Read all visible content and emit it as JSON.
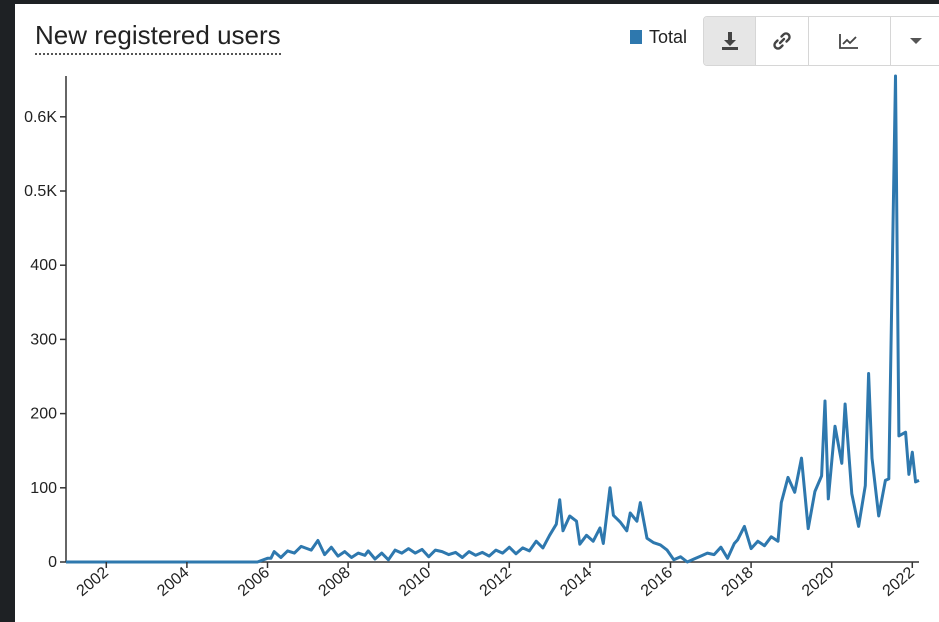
{
  "chart_data": {
    "type": "line",
    "title": "New registered users",
    "legend": {
      "entries": [
        "Total"
      ],
      "position": "top-right"
    },
    "xlabel": "",
    "ylabel": "",
    "x_ticks": [
      "2002",
      "2004",
      "2006",
      "2008",
      "2010",
      "2012",
      "2014",
      "2016",
      "2018",
      "2020",
      "2022"
    ],
    "y_ticks": [
      {
        "value": 0,
        "label": "0"
      },
      {
        "value": 100,
        "label": "100"
      },
      {
        "value": 200,
        "label": "200"
      },
      {
        "value": 300,
        "label": "300"
      },
      {
        "value": 400,
        "label": "400"
      },
      {
        "value": 500,
        "label": "0.5K"
      },
      {
        "value": 600,
        "label": "0.6K"
      }
    ],
    "xlim": [
      "2001-01",
      "2022-03"
    ],
    "ylim": [
      0,
      655
    ],
    "grid": false,
    "series": [
      {
        "name": "Total",
        "color": "#2e78ae",
        "points": [
          [
            "2001-01",
            0
          ],
          [
            "2005-10",
            0
          ],
          [
            "2006-01",
            5
          ],
          [
            "2006-02",
            5
          ],
          [
            "2006-03",
            14
          ],
          [
            "2006-05",
            6
          ],
          [
            "2006-07",
            15
          ],
          [
            "2006-09",
            12
          ],
          [
            "2006-11",
            21
          ],
          [
            "2007-02",
            16
          ],
          [
            "2007-04",
            29
          ],
          [
            "2007-06",
            10
          ],
          [
            "2007-08",
            20
          ],
          [
            "2007-10",
            8
          ],
          [
            "2007-12",
            14
          ],
          [
            "2008-02",
            6
          ],
          [
            "2008-04",
            12
          ],
          [
            "2008-06",
            9
          ],
          [
            "2008-07",
            15
          ],
          [
            "2008-09",
            4
          ],
          [
            "2008-11",
            12
          ],
          [
            "2009-01",
            3
          ],
          [
            "2009-03",
            16
          ],
          [
            "2009-05",
            12
          ],
          [
            "2009-07",
            18
          ],
          [
            "2009-09",
            12
          ],
          [
            "2009-11",
            17
          ],
          [
            "2010-01",
            7
          ],
          [
            "2010-03",
            16
          ],
          [
            "2010-05",
            14
          ],
          [
            "2010-07",
            10
          ],
          [
            "2010-09",
            13
          ],
          [
            "2010-11",
            6
          ],
          [
            "2011-01",
            14
          ],
          [
            "2011-03",
            9
          ],
          [
            "2011-05",
            13
          ],
          [
            "2011-07",
            8
          ],
          [
            "2011-09",
            16
          ],
          [
            "2011-11",
            12
          ],
          [
            "2012-01",
            20
          ],
          [
            "2012-03",
            11
          ],
          [
            "2012-05",
            19
          ],
          [
            "2012-07",
            15
          ],
          [
            "2012-09",
            28
          ],
          [
            "2012-11",
            19
          ],
          [
            "2013-01",
            36
          ],
          [
            "2013-03",
            51
          ],
          [
            "2013-04",
            84
          ],
          [
            "2013-05",
            42
          ],
          [
            "2013-07",
            62
          ],
          [
            "2013-09",
            55
          ],
          [
            "2013-10",
            24
          ],
          [
            "2013-12",
            36
          ],
          [
            "2014-02",
            28
          ],
          [
            "2014-04",
            46
          ],
          [
            "2014-05",
            25
          ],
          [
            "2014-07",
            100
          ],
          [
            "2014-08",
            63
          ],
          [
            "2014-10",
            54
          ],
          [
            "2014-12",
            42
          ],
          [
            "2015-01",
            66
          ],
          [
            "2015-03",
            55
          ],
          [
            "2015-04",
            80
          ],
          [
            "2015-06",
            32
          ],
          [
            "2015-08",
            26
          ],
          [
            "2015-10",
            23
          ],
          [
            "2015-12",
            16
          ],
          [
            "2016-02",
            3
          ],
          [
            "2016-04",
            7
          ],
          [
            "2016-06",
            0
          ],
          [
            "2016-08",
            4
          ],
          [
            "2016-10",
            8
          ],
          [
            "2016-12",
            12
          ],
          [
            "2017-02",
            10
          ],
          [
            "2017-04",
            20
          ],
          [
            "2017-06",
            5
          ],
          [
            "2017-08",
            25
          ],
          [
            "2017-09",
            30
          ],
          [
            "2017-11",
            48
          ],
          [
            "2018-01",
            18
          ],
          [
            "2018-03",
            28
          ],
          [
            "2018-05",
            22
          ],
          [
            "2018-07",
            34
          ],
          [
            "2018-09",
            28
          ],
          [
            "2018-10",
            80
          ],
          [
            "2018-12",
            114
          ],
          [
            "2019-02",
            94
          ],
          [
            "2019-04",
            140
          ],
          [
            "2019-06",
            45
          ],
          [
            "2019-08",
            95
          ],
          [
            "2019-10",
            116
          ],
          [
            "2019-11",
            217
          ],
          [
            "2019-12",
            85
          ],
          [
            "2020-02",
            183
          ],
          [
            "2020-04",
            133
          ],
          [
            "2020-05",
            213
          ],
          [
            "2020-07",
            92
          ],
          [
            "2020-09",
            48
          ],
          [
            "2020-11",
            103
          ],
          [
            "2020-12",
            254
          ],
          [
            "2021-01",
            140
          ],
          [
            "2021-03",
            62
          ],
          [
            "2021-05",
            110
          ],
          [
            "2021-06",
            112
          ],
          [
            "2021-08",
            655
          ],
          [
            "2021-09",
            170
          ],
          [
            "2021-11",
            175
          ],
          [
            "2021-12",
            118
          ],
          [
            "2022-01",
            148
          ],
          [
            "2022-02",
            108
          ],
          [
            "2022-03",
            110
          ]
        ]
      }
    ]
  },
  "legend_color": "#2e78ae",
  "toolbar": {
    "buttons": [
      {
        "icon": "download-icon"
      },
      {
        "icon": "link-icon"
      },
      {
        "icon": "line-chart-icon"
      },
      {
        "icon": "caret-down-icon"
      }
    ]
  }
}
